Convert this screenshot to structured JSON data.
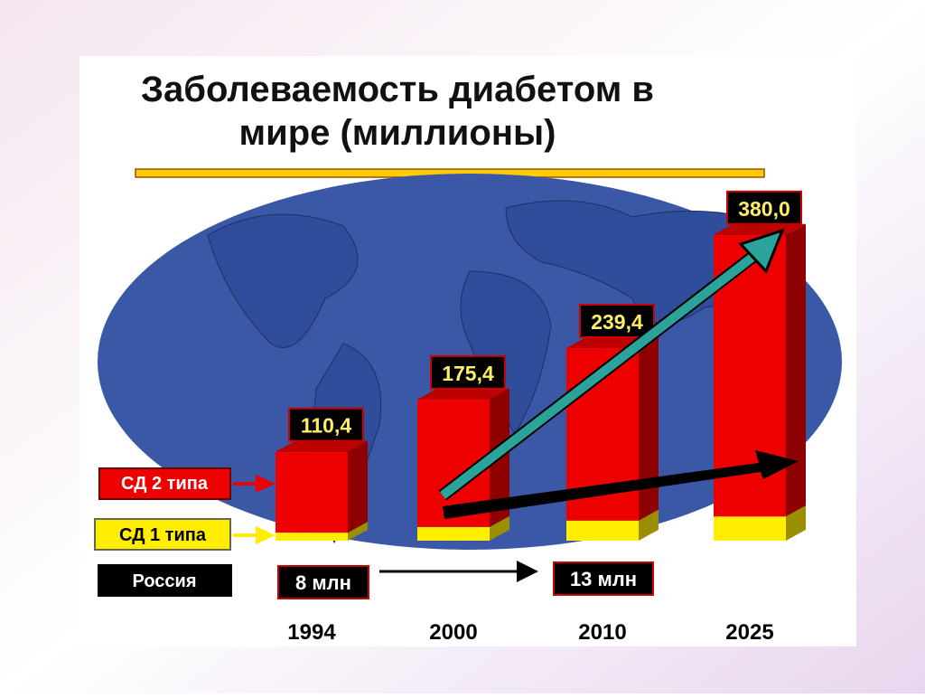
{
  "chart_data": {
    "type": "bar3d-stacked",
    "title": "Заболеваемость диабетом в мире (миллионы)",
    "categories": [
      "1994",
      "2000",
      "2010",
      "2025"
    ],
    "series": [
      {
        "name": "СД 1 типа",
        "color": "#ffee00",
        "values": [
          10,
          17,
          25,
          30
        ]
      },
      {
        "name": "СД 2 типа",
        "color": "#ee0000",
        "values": [
          100.4,
          158.4,
          214.4,
          350.0
        ]
      }
    ],
    "totals": {
      "values": [
        110.4,
        175.4,
        239.4,
        380.0
      ],
      "value_labels": [
        "110,4",
        "175,4",
        "239,4",
        "380,0"
      ]
    },
    "russia": {
      "label": "Россия",
      "items": [
        "8 млн",
        "13 млн"
      ]
    }
  }
}
